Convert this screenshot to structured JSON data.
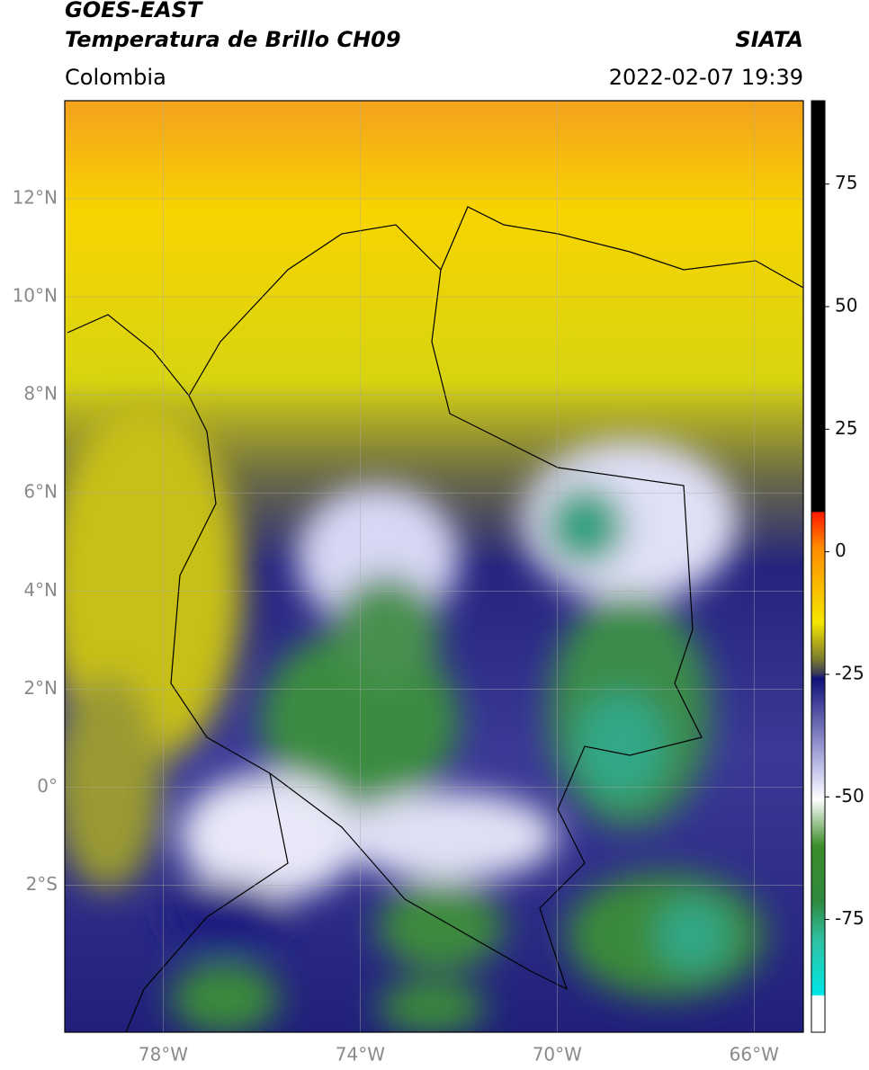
{
  "header": {
    "title": "GOES-EAST",
    "subtitle": "Temperatura de Brillo CH09",
    "source": "SIATA",
    "region": "Colombia",
    "timestamp": "2022-02-07 19:39"
  },
  "map": {
    "xlim": [
      -80,
      -65
    ],
    "ylim": [
      -5,
      14
    ],
    "xticks": [
      {
        "value": -78,
        "label": "78°W"
      },
      {
        "value": -74,
        "label": "74°W"
      },
      {
        "value": -70,
        "label": "70°W"
      },
      {
        "value": -66,
        "label": "66°W"
      }
    ],
    "yticks": [
      {
        "value": 12,
        "label": "12°N"
      },
      {
        "value": 10,
        "label": "10°N"
      },
      {
        "value": 8,
        "label": "8°N"
      },
      {
        "value": 6,
        "label": "6°N"
      },
      {
        "value": 4,
        "label": "4°N"
      },
      {
        "value": 2,
        "label": "2°N"
      },
      {
        "value": 0,
        "label": "0°"
      },
      {
        "value": -2,
        "label": "2°S"
      }
    ],
    "grid": true
  },
  "colorbar": {
    "lim": [
      -98,
      92
    ],
    "ticks": [
      75,
      50,
      25,
      0,
      -25,
      -50,
      -75
    ]
  }
}
